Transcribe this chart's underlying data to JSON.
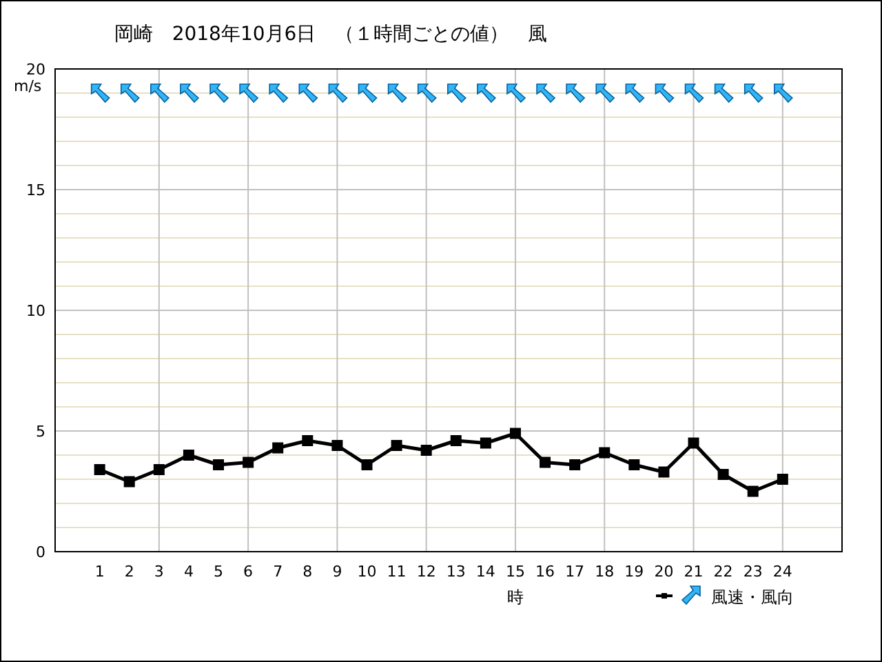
{
  "chart_data": {
    "type": "line",
    "title": "岡崎　2018年10月6日　（１時間ごとの値）　風",
    "xlabel": "時",
    "ylabel": "m/s",
    "x": [
      1,
      2,
      3,
      4,
      5,
      6,
      7,
      8,
      9,
      10,
      11,
      12,
      13,
      14,
      15,
      16,
      17,
      18,
      19,
      20,
      21,
      22,
      23,
      24
    ],
    "series": [
      {
        "name": "風速・風向",
        "color": "#000000",
        "values": [
          3.4,
          2.9,
          3.4,
          4.0,
          3.6,
          3.7,
          4.3,
          4.6,
          4.4,
          3.6,
          4.4,
          4.2,
          4.6,
          4.5,
          4.9,
          3.7,
          3.6,
          4.1,
          3.6,
          3.3,
          4.5,
          3.2,
          2.5,
          3.0
        ]
      }
    ],
    "xlim": [
      -0.5,
      26
    ],
    "xticks": [
      1,
      2,
      3,
      4,
      5,
      6,
      7,
      8,
      9,
      10,
      11,
      12,
      13,
      14,
      15,
      16,
      17,
      18,
      19,
      20,
      21,
      22,
      23,
      24
    ],
    "ylim": [
      0,
      20
    ],
    "yticks": [
      0,
      {
        "value": 1,
        "label": null
      },
      {
        "value": 2,
        "label": null
      },
      {
        "value": 3,
        "label": null
      },
      {
        "value": 4,
        "label": null
      },
      5,
      {
        "value": 6,
        "label": null
      },
      {
        "value": 7,
        "label": null
      },
      {
        "value": 8,
        "label": null
      },
      {
        "value": 9,
        "label": null
      },
      10,
      {
        "value": 11,
        "label": null
      },
      {
        "value": 12,
        "label": null
      },
      {
        "value": 13,
        "label": null
      },
      {
        "value": 14,
        "label": null
      },
      15,
      {
        "value": 16,
        "label": null
      },
      {
        "value": 17,
        "label": null
      },
      {
        "value": 18,
        "label": null
      },
      {
        "value": 19,
        "label": null
      },
      20
    ],
    "grid": true,
    "legend": "bottom right",
    "marker": "square",
    "line_style": "solid"
  }
}
